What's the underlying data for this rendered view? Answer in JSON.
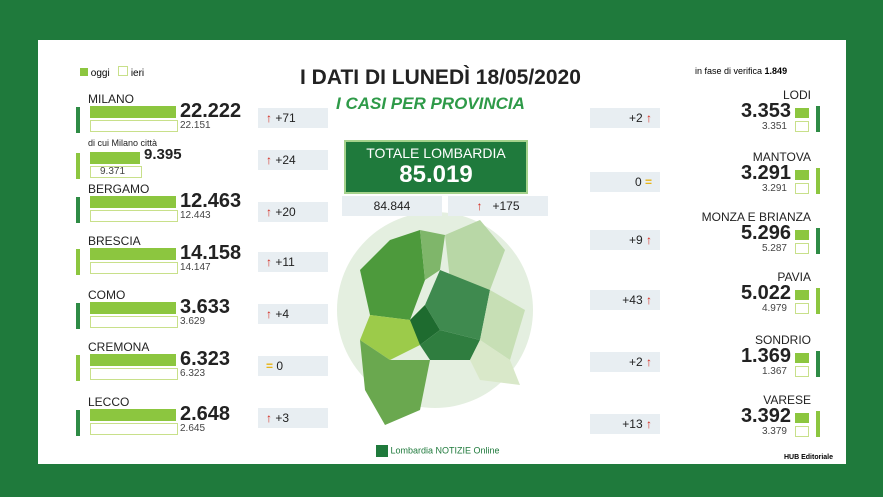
{
  "header": {
    "legend": [
      "oggi",
      "ieri"
    ],
    "title": "I DATI DI LUNEDÌ 18/05/2020",
    "subtitle": "I CASI PER PROVINCIA",
    "verification_label": "in fase di verifica",
    "verification_value": "1.849"
  },
  "total": {
    "label": "TOTALE LOMBARDIA",
    "value": "85.019",
    "yesterday": "84.844",
    "delta": "+175"
  },
  "left": [
    {
      "name": "MILANO",
      "today": "22.222",
      "yesterday": "22.151",
      "delta": "+71"
    },
    {
      "name": "di cui Milano città",
      "today": "9.395",
      "yesterday": "9.371",
      "delta": "+24"
    },
    {
      "name": "BERGAMO",
      "today": "12.463",
      "yesterday": "12.443",
      "delta": "+20"
    },
    {
      "name": "BRESCIA",
      "today": "14.158",
      "yesterday": "14.147",
      "delta": "+11"
    },
    {
      "name": "COMO",
      "today": "3.633",
      "yesterday": "3.629",
      "delta": "+4"
    },
    {
      "name": "CREMONA",
      "today": "6.323",
      "yesterday": "6.323",
      "delta": "0"
    },
    {
      "name": "LECCO",
      "today": "2.648",
      "yesterday": "2.645",
      "delta": "+3"
    }
  ],
  "right": [
    {
      "name": "LODI",
      "today": "3.353",
      "yesterday": "3.351",
      "delta": "+2"
    },
    {
      "name": "MANTOVA",
      "today": "3.291",
      "yesterday": "3.291",
      "delta": "0"
    },
    {
      "name": "MONZA E BRIANZA",
      "today": "5.296",
      "yesterday": "5.287",
      "delta": "+9"
    },
    {
      "name": "PAVIA",
      "today": "5.022",
      "yesterday": "4.979",
      "delta": "+43"
    },
    {
      "name": "SONDRIO",
      "today": "1.369",
      "yesterday": "1.367",
      "delta": "+2"
    },
    {
      "name": "VARESE",
      "today": "3.392",
      "yesterday": "3.379",
      "delta": "+13"
    }
  ],
  "footer": {
    "brand": "Lombardia NOTIZIE Online",
    "credit": "HUB Editoriale"
  }
}
